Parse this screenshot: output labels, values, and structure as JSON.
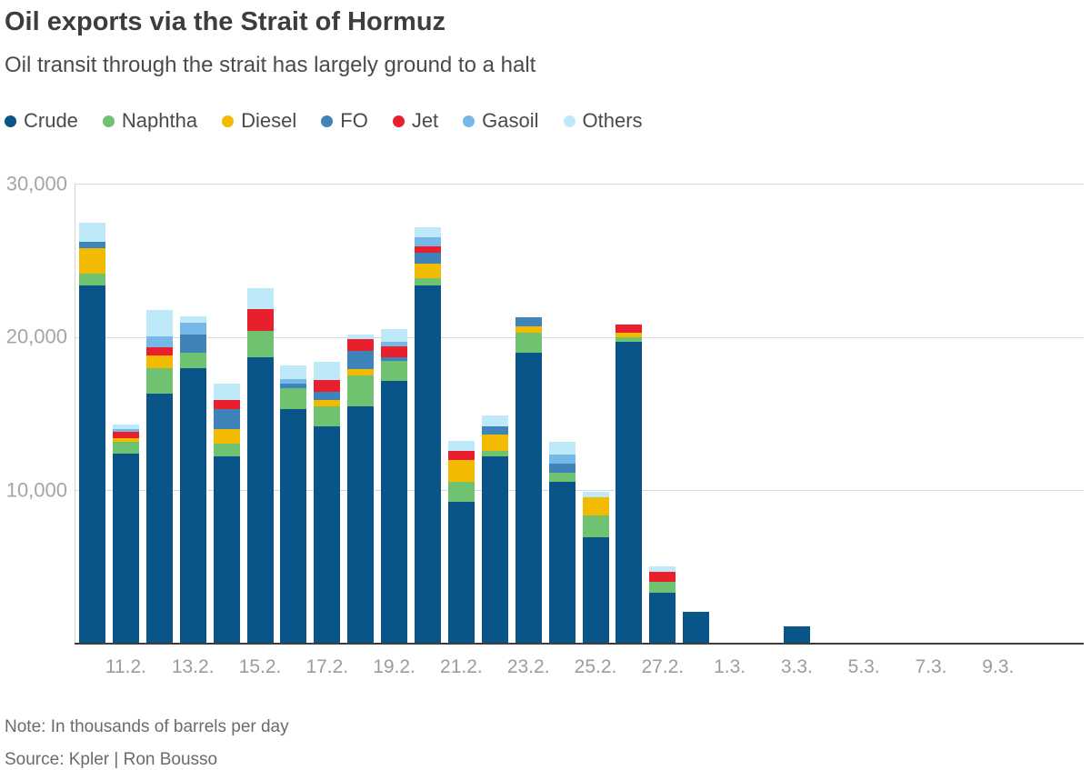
{
  "title": "Oil exports via the Strait of Hormuz",
  "subtitle": "Oil transit through the strait has largely ground to a halt",
  "note": "Note: In thousands of barrels per day",
  "source": "Source: Kpler | Ron Bousso",
  "chart_data": {
    "type": "bar",
    "stacked": true,
    "title": "Oil exports via the Strait of Hormuz",
    "subtitle": "Oil transit through the strait has largely ground to a halt",
    "unit": "thousands of barrels per day",
    "grid": "horizontal",
    "legend_position": "top-left",
    "ylim": [
      0,
      30000
    ],
    "yticks": [
      {
        "value": 10000,
        "label": "10,000"
      },
      {
        "value": 20000,
        "label": "20,000"
      },
      {
        "value": 30000,
        "label": "30,000"
      }
    ],
    "x_tick_labels": [
      "11.2.",
      "13.2.",
      "15.2.",
      "17.2.",
      "19.2.",
      "21.2.",
      "23.2.",
      "25.2.",
      "27.2.",
      "1.3.",
      "3.3.",
      "5.3.",
      "7.3.",
      "9.3."
    ],
    "categories": [
      "10.2.",
      "11.2.",
      "12.2.",
      "13.2.",
      "14.2.",
      "15.2.",
      "16.2.",
      "17.2.",
      "18.2.",
      "19.2.",
      "20.2.",
      "21.2.",
      "22.2.",
      "23.2.",
      "24.2.",
      "25.2.",
      "26.2.",
      "27.2.",
      "28.2.",
      "3.3."
    ],
    "series": [
      {
        "name": "Crude",
        "color": "#095488",
        "values": [
          23400,
          12400,
          16350,
          18000,
          12200,
          18700,
          15300,
          14200,
          15500,
          17150,
          23400,
          9250,
          12250,
          19000,
          10550,
          6950,
          19700,
          3300,
          2100,
          1100
        ]
      },
      {
        "name": "Naphtha",
        "color": "#6fc26f",
        "values": [
          730,
          770,
          1620,
          990,
          830,
          1720,
          1350,
          1290,
          1980,
          1300,
          480,
          1330,
          360,
          1290,
          590,
          1430,
          320,
          760,
          0,
          0
        ]
      },
      {
        "name": "Diesel",
        "color": "#f2ba00",
        "values": [
          1680,
          260,
          830,
          0,
          950,
          0,
          0,
          400,
          430,
          0,
          950,
          1390,
          1070,
          430,
          0,
          1190,
          280,
          0,
          0,
          0
        ]
      },
      {
        "name": "FO",
        "color": "#3e83ba",
        "values": [
          450,
          0,
          0,
          1190,
          1330,
          0,
          340,
          530,
          1230,
          240,
          700,
          0,
          500,
          600,
          590,
          0,
          0,
          0,
          0,
          0
        ]
      },
      {
        "name": "Jet",
        "color": "#e8202e",
        "values": [
          0,
          400,
          550,
          0,
          600,
          1440,
          0,
          790,
          760,
          700,
          400,
          600,
          0,
          0,
          0,
          0,
          520,
          630,
          0,
          0
        ]
      },
      {
        "name": "Gasoil",
        "color": "#76b9e8",
        "values": [
          0,
          200,
          700,
          790,
          0,
          0,
          300,
          0,
          0,
          300,
          590,
          0,
          0,
          0,
          590,
          0,
          0,
          0,
          0,
          0
        ]
      },
      {
        "name": "Others",
        "color": "#bee9f8",
        "values": [
          1230,
          300,
          1720,
          400,
          1050,
          1340,
          850,
          1190,
          300,
          830,
          660,
          660,
          690,
          0,
          850,
          360,
          0,
          360,
          0,
          0
        ]
      }
    ]
  }
}
